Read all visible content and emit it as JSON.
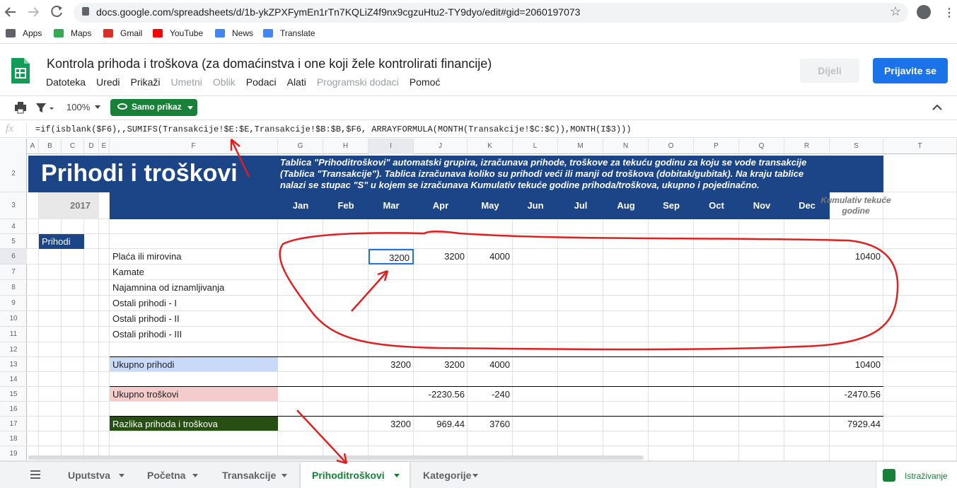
{
  "browser": {
    "url": "docs.google.com/spreadsheets/d/1b-ykZPXFymEn1rTn7KQLiZ4f9nx9cgzuHtu2-TY9dyo/edit#gid=2060197073",
    "bookmarks": [
      "Apps",
      "Maps",
      "Gmail",
      "YouTube",
      "News",
      "Translate"
    ]
  },
  "document": {
    "title": "Kontrola prihoda i troškova (za domaćinstva i one koji žele kontrolirati financije)",
    "menu": [
      "Datoteka",
      "Uredi",
      "Prikaži",
      "Umetni",
      "Oblik",
      "Podaci",
      "Alati",
      "Programski dodaci",
      "Pomoć"
    ],
    "share_button": "Dijeli",
    "signin_button": "Prijavite se"
  },
  "toolbar": {
    "zoom": "100%",
    "view_mode": "Samo prikaz"
  },
  "formula_bar": {
    "label": "fx",
    "formula": "=if(isblank($F6),,SUMIFS(Transakcije!$E:$E,Transakcije!$B:$B,$F6, ARRAYFORMULA(MONTH(Transakcije!$C:$C)),MONTH(I$3)))"
  },
  "sheet": {
    "columns": [
      "A",
      "B",
      "C",
      "D",
      "E",
      "F",
      "G",
      "H",
      "I",
      "J",
      "K",
      "L",
      "M",
      "N",
      "O",
      "P",
      "Q",
      "R",
      "S",
      "T"
    ],
    "row_numbers": [
      "2",
      "3",
      "4",
      "5",
      "6",
      "7",
      "8",
      "9",
      "10",
      "11",
      "12",
      "13",
      "14",
      "15",
      "16",
      "17",
      "18",
      "19"
    ],
    "banner_title": "Prihodi i troškovi",
    "description": "Tablica \"Prihoditroškovi\" automatski grupira,  izračunava prihode, troškove za tekuću godinu za koju se vode transakcije (Tablica \"Transakcije\"). Tablica izračunava koliko su prihodi veći ili manji od troškova (dobitak/gubitak). Na kraju tablice nalazi se stupac \"S\" u kojem se  izračunava Kumulativ tekuće godine prihoda/troškova, ukupno i pojedinačno.",
    "year": "2017",
    "months": [
      "Jan",
      "Feb",
      "Mar",
      "Apr",
      "May",
      "Jun",
      "Jul",
      "Aug",
      "Sep",
      "Oct",
      "Nov",
      "Dec"
    ],
    "cumulative_header": "Kumulativ tekuće godine",
    "section_label": "Prihodi",
    "lines": [
      {
        "label": "Plaća ili mirovina",
        "cells": {
          "I": "3200",
          "J": "3200",
          "K": "4000",
          "S": "10400"
        }
      },
      {
        "label": "Kamate",
        "cells": {}
      },
      {
        "label": "Najamnina od iznamljivanja",
        "cells": {}
      },
      {
        "label": "Ostali prihodi - I",
        "cells": {}
      },
      {
        "label": "Ostali prihodi - II",
        "cells": {}
      },
      {
        "label": "Ostali prihodi - III",
        "cells": {}
      },
      {
        "label": "Ukupno prihodi",
        "cells": {
          "I": "3200",
          "J": "3200",
          "K": "4000",
          "S": "10400"
        }
      },
      {
        "label": "Ukupno troškovi",
        "cells": {
          "J": "-2230.56",
          "K": "-240",
          "S": "-2470.56"
        }
      },
      {
        "label": "Razlika prihoda i troškova",
        "cells": {
          "I": "3200",
          "J": "969.44",
          "K": "3760",
          "S": "7929.44"
        }
      }
    ]
  },
  "tabs": [
    "Uputstva",
    "Početna",
    "Transakcije",
    "Prihoditroškovi",
    "Kategorije"
  ],
  "active_tab": "Prihoditroškovi",
  "explore": "Istraživanje"
}
